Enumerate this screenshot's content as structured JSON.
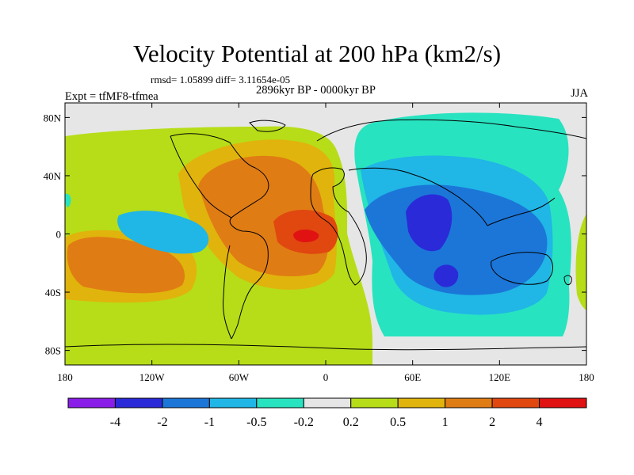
{
  "title": "Velocity Potential at 200 hPa (km2/s)",
  "stats": "rmsd= 1.05899 diff= 3.11654e-05",
  "left_label": "Expt = tfMF8-tfmea",
  "center_label": "2896kyr BP - 0000kyr BP",
  "right_label": "JJA",
  "lat_ticks": [
    {
      "label": "80N",
      "value": 80
    },
    {
      "label": "40N",
      "value": 40
    },
    {
      "label": "0",
      "value": 0
    },
    {
      "label": "40S",
      "value": -40
    },
    {
      "label": "80S",
      "value": -80
    }
  ],
  "lon_ticks": [
    {
      "label": "180",
      "value": -180
    },
    {
      "label": "120W",
      "value": -120
    },
    {
      "label": "60W",
      "value": -60
    },
    {
      "label": "0",
      "value": 0
    },
    {
      "label": "60E",
      "value": 60
    },
    {
      "label": "120E",
      "value": 120
    },
    {
      "label": "180",
      "value": 180
    }
  ],
  "colorbar": {
    "colors": [
      "#8a1ee8",
      "#2a2ad8",
      "#1b76d8",
      "#20b6e6",
      "#28e3c0",
      "#e6e6e6",
      "#b6dd18",
      "#e0b40c",
      "#e07c14",
      "#e04810",
      "#e01212"
    ],
    "labels": [
      "-4",
      "-2",
      "-1",
      "-0.5",
      "-0.2",
      "0.2",
      "0.5",
      "1",
      "2",
      "4"
    ]
  },
  "colors": {
    "c_m4": "#8a1ee8",
    "c_m2": "#2a2ad8",
    "c_m1": "#1b76d8",
    "c_m05": "#20b6e6",
    "c_m02": "#28e3c0",
    "c_0": "#e6e6e6",
    "c_02": "#b6dd18",
    "c_05": "#e0b40c",
    "c_1": "#e07c14",
    "c_2": "#e04810",
    "c_4": "#e01212"
  }
}
